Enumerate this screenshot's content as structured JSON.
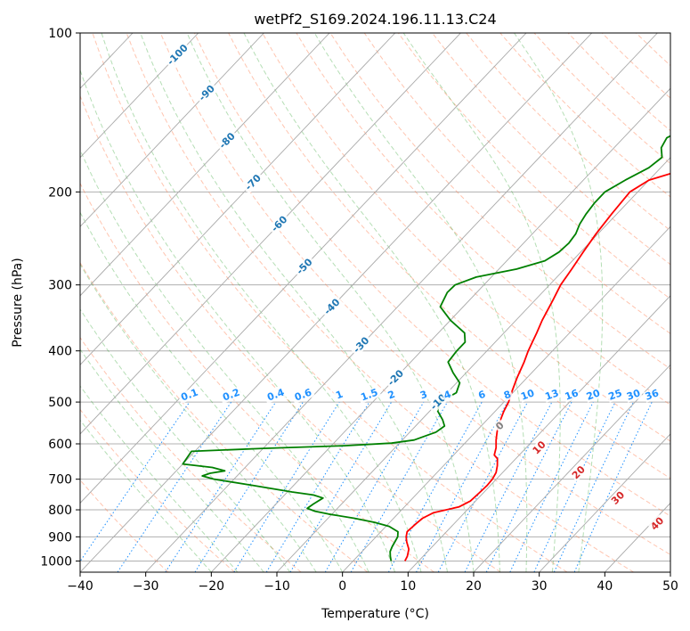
{
  "chart_data": {
    "type": "line",
    "title": "wetPf2_S169.2024.196.11.13.C24",
    "xlabel": "Temperature (°C)",
    "ylabel": "Pressure (hPa)",
    "xlim": [
      -40,
      50
    ],
    "ylim": [
      1050,
      100
    ],
    "y_scale": "log",
    "grid": true,
    "x_ticks": [
      -40,
      -30,
      -20,
      -10,
      0,
      10,
      20,
      30,
      40,
      50
    ],
    "y_ticks": [
      100,
      200,
      300,
      400,
      500,
      600,
      700,
      800,
      900,
      1000
    ],
    "colors": {
      "temperature": "#ff0000",
      "dewpoint": "#008000",
      "isotherm": "#808080",
      "dry_adiabat": "#ff7f50",
      "moist_adiabat": "#2ca02c",
      "mixing_ratio": "#1e90ff",
      "isotherm_label": "#1f77b4",
      "label_red": "#d62728",
      "zero_label": "#808080"
    },
    "series": [
      {
        "role": "temperature",
        "points": [
          [
            1000,
            7.9
          ],
          [
            980,
            7.6
          ],
          [
            950,
            6.8
          ],
          [
            920,
            5.4
          ],
          [
            900,
            4.6
          ],
          [
            880,
            4.0
          ],
          [
            850,
            4.2
          ],
          [
            830,
            4.4
          ],
          [
            810,
            5.3
          ],
          [
            790,
            8.3
          ],
          [
            770,
            9.2
          ],
          [
            740,
            9.4
          ],
          [
            720,
            9.5
          ],
          [
            700,
            9.4
          ],
          [
            680,
            9.0
          ],
          [
            660,
            8.2
          ],
          [
            640,
            7.2
          ],
          [
            630,
            6.2
          ],
          [
            610,
            5.4
          ],
          [
            590,
            4.3
          ],
          [
            570,
            3.3
          ],
          [
            550,
            2.4
          ],
          [
            520,
            1.3
          ],
          [
            500,
            0.7
          ],
          [
            480,
            -0.2
          ],
          [
            450,
            -1.5
          ],
          [
            420,
            -2.7
          ],
          [
            400,
            -3.7
          ],
          [
            370,
            -5.0
          ],
          [
            350,
            -6.0
          ],
          [
            320,
            -7.3
          ],
          [
            300,
            -8.3
          ],
          [
            280,
            -8.9
          ],
          [
            260,
            -9.6
          ],
          [
            240,
            -10.3
          ],
          [
            220,
            -10.8
          ],
          [
            200,
            -11.2
          ],
          [
            190,
            -10.0
          ],
          [
            182,
            -6.5
          ],
          [
            175,
            -2.0
          ],
          [
            168,
            2.5
          ],
          [
            162,
            4.5
          ],
          [
            155,
            5.6
          ],
          [
            145,
            6.6
          ],
          [
            135,
            7.2
          ],
          [
            125,
            7.9
          ],
          [
            115,
            9.0
          ],
          [
            108,
            10.2
          ],
          [
            100,
            11.4
          ]
        ]
      },
      {
        "role": "dewpoint",
        "points": [
          [
            1000,
            5.8
          ],
          [
            980,
            5.0
          ],
          [
            960,
            4.3
          ],
          [
            940,
            3.9
          ],
          [
            920,
            3.6
          ],
          [
            900,
            3.3
          ],
          [
            880,
            2.6
          ],
          [
            860,
            0.5
          ],
          [
            845,
            -2.3
          ],
          [
            830,
            -6.0
          ],
          [
            815,
            -10.5
          ],
          [
            805,
            -13.0
          ],
          [
            795,
            -14.6
          ],
          [
            780,
            -14.3
          ],
          [
            760,
            -13.7
          ],
          [
            750,
            -15.6
          ],
          [
            740,
            -19.3
          ],
          [
            720,
            -26.0
          ],
          [
            700,
            -33.0
          ],
          [
            690,
            -35.3
          ],
          [
            682,
            -34.5
          ],
          [
            675,
            -32.6
          ],
          [
            665,
            -35.0
          ],
          [
            655,
            -40.0
          ],
          [
            620,
            -40.5
          ],
          [
            612,
            -30.0
          ],
          [
            605,
            -18.0
          ],
          [
            598,
            -11.2
          ],
          [
            590,
            -8.2
          ],
          [
            570,
            -6.0
          ],
          [
            555,
            -5.6
          ],
          [
            540,
            -6.8
          ],
          [
            520,
            -8.8
          ],
          [
            500,
            -9.8
          ],
          [
            480,
            -8.6
          ],
          [
            460,
            -9.5
          ],
          [
            440,
            -12.0
          ],
          [
            420,
            -14.3
          ],
          [
            400,
            -14.6
          ],
          [
            385,
            -14.6
          ],
          [
            370,
            -16.0
          ],
          [
            350,
            -20.0
          ],
          [
            330,
            -23.5
          ],
          [
            310,
            -24.5
          ],
          [
            300,
            -24.4
          ],
          [
            290,
            -22.3
          ],
          [
            280,
            -17.3
          ],
          [
            270,
            -14.2
          ],
          [
            260,
            -13.3
          ],
          [
            250,
            -13.1
          ],
          [
            240,
            -13.4
          ],
          [
            230,
            -14.2
          ],
          [
            220,
            -14.7
          ],
          [
            210,
            -15.0
          ],
          [
            200,
            -15.0
          ],
          [
            190,
            -13.6
          ],
          [
            180,
            -11.8
          ],
          [
            172,
            -11.3
          ],
          [
            165,
            -12.8
          ],
          [
            158,
            -13.4
          ],
          [
            150,
            -11.7
          ],
          [
            140,
            -9.6
          ],
          [
            130,
            -7.6
          ],
          [
            120,
            -6.0
          ],
          [
            110,
            -4.2
          ],
          [
            100,
            -2.7
          ]
        ]
      }
    ],
    "isotherm_labels": [
      -100,
      -90,
      -80,
      -70,
      -60,
      -50,
      -40,
      -30,
      -20,
      -10
    ],
    "mixing_ratio_labels": [
      "0.1",
      "0.2",
      "0.4",
      "0.6",
      "1",
      "1.5",
      "2",
      "3",
      "4",
      "6",
      "8",
      "10",
      "13",
      "16",
      "20",
      "25",
      "30",
      "36"
    ],
    "wetbulb_labels": [
      "0",
      "10",
      "20",
      "30",
      "40"
    ]
  }
}
